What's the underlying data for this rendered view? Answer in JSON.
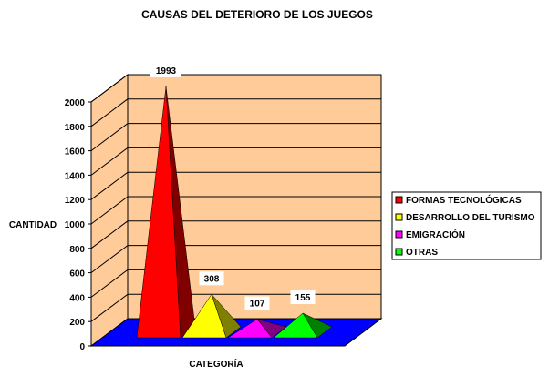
{
  "chart_data": {
    "type": "bar",
    "title": "CAUSAS DEL DETERIORO DE LOS JUEGOS",
    "xlabel": "CATEGORÍA",
    "ylabel": "CANTIDAD",
    "categories": [
      "FORMAS TECNOLÓGICAS",
      "DESARROLLO DEL TURISMO",
      "EMIGRACIÓN",
      "OTRAS"
    ],
    "values": [
      1993,
      308,
      107,
      155
    ],
    "ylim": [
      0,
      2000
    ],
    "yticks": [
      "0",
      "200",
      "400",
      "600",
      "800",
      "1000",
      "1200",
      "1400",
      "1600",
      "1800",
      "2000"
    ],
    "data_labels": [
      "1993",
      "308",
      "107",
      "155"
    ],
    "colors": [
      "#ff0000",
      "#ffff00",
      "#ff00ff",
      "#00ff00"
    ],
    "legend": {
      "placement": "right",
      "entries": [
        "FORMAS TECNOLÓGICAS",
        "DESARROLLO DEL TURISMO",
        "EMIGRACIÓN",
        "OTRAS"
      ]
    },
    "grid": true,
    "wall_color": "#ffcc99",
    "floor_color": "#0000ff"
  }
}
